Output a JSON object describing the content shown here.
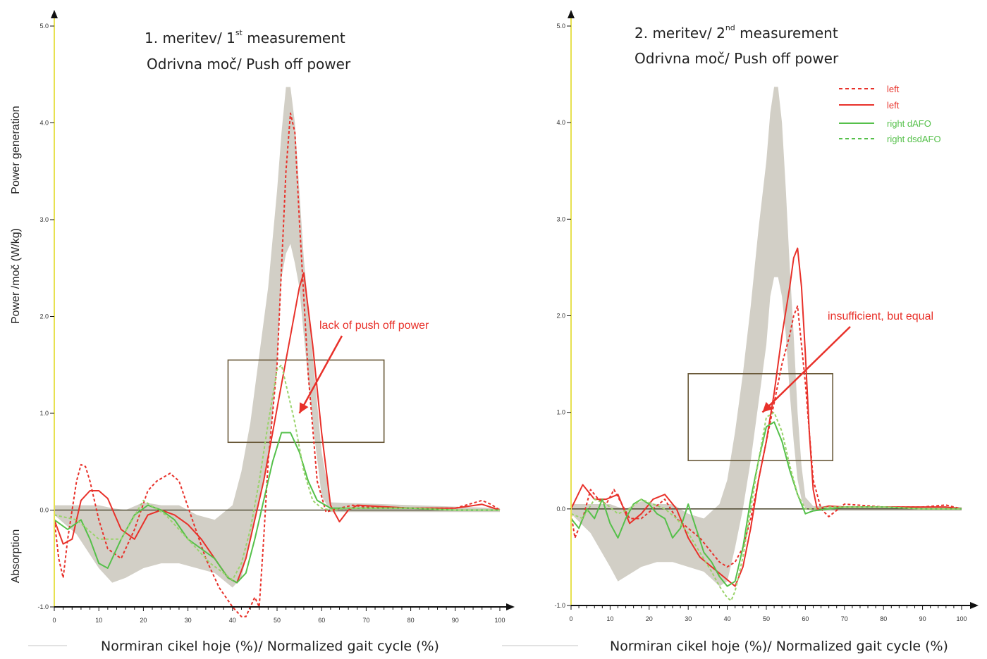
{
  "chart_data": [
    {
      "type": "line",
      "title": [
        "1. meritev/ 1",
        "st",
        " measurement"
      ],
      "subtitle": "Odrivna moč/ Push off power",
      "xlabel": "Normiran cikel hoje (%)/ Normalized gait cycle (%)",
      "ylabel": "Power /moč (W/kg)",
      "ylabel_top": "Power generation",
      "ylabel_bottom": "Absorption",
      "xlim": [
        0,
        100
      ],
      "ylim": [
        -1.0,
        5.0
      ],
      "x_ticks": [
        "0",
        "10",
        "20",
        "30",
        "40",
        "50",
        "60",
        "70",
        "80",
        "90",
        "100"
      ],
      "y_ticks": [
        "-1.0",
        "0.0",
        "1.0",
        "2.0",
        "3.0",
        "4.0",
        "5.0"
      ],
      "annotation": {
        "text": "lack of push off power",
        "box": {
          "x": [
            39,
            74
          ],
          "y": [
            0.7,
            1.55
          ]
        },
        "arrow_to": [
          55,
          1.0
        ]
      },
      "normal_band": {
        "x": [
          0,
          5,
          10,
          13,
          16,
          20,
          24,
          28,
          32,
          36,
          40,
          42,
          44,
          46,
          48,
          50,
          51,
          52,
          53,
          54,
          55,
          56,
          58,
          60,
          62,
          100
        ],
        "lower": [
          -0.05,
          -0.25,
          -0.6,
          -0.75,
          -0.7,
          -0.6,
          -0.55,
          -0.55,
          -0.6,
          -0.65,
          -0.8,
          -0.7,
          -0.3,
          0.1,
          0.5,
          1.5,
          2.4,
          2.65,
          2.75,
          2.55,
          2.3,
          1.8,
          0.9,
          0.15,
          -0.02,
          -0.02
        ],
        "upper": [
          0.05,
          0.05,
          0.05,
          0.02,
          0.0,
          0.08,
          0.05,
          0.05,
          -0.05,
          -0.1,
          0.05,
          0.4,
          0.9,
          1.6,
          2.3,
          3.3,
          3.9,
          4.37,
          4.37,
          4.0,
          3.3,
          2.6,
          1.6,
          0.6,
          0.08,
          0.02
        ]
      },
      "series": [
        {
          "color": "#e8312a",
          "dash": true,
          "x": [
            0,
            1,
            2,
            3,
            5,
            6,
            7,
            8,
            10,
            12,
            15,
            18,
            21,
            23,
            26,
            28,
            31,
            34,
            37,
            40,
            42,
            43,
            45,
            46,
            47,
            48,
            50,
            51,
            52,
            53,
            54,
            55,
            57,
            59,
            61,
            64,
            67,
            70,
            80,
            90,
            96,
            98,
            100
          ],
          "y": [
            -0.1,
            -0.5,
            -0.7,
            -0.3,
            0.3,
            0.47,
            0.45,
            0.3,
            -0.1,
            -0.4,
            -0.5,
            -0.2,
            0.2,
            0.3,
            0.38,
            0.3,
            -0.1,
            -0.5,
            -0.8,
            -1.0,
            -1.1,
            -1.1,
            -0.9,
            -1.0,
            -0.3,
            0.5,
            1.5,
            2.5,
            3.5,
            4.1,
            3.9,
            3.0,
            1.4,
            0.3,
            -0.02,
            0.02,
            0.05,
            0.03,
            0.02,
            0.02,
            0.1,
            0.06,
            0.0
          ]
        },
        {
          "color": "#e8312a",
          "dash": false,
          "x": [
            0,
            2,
            4,
            6,
            8,
            10,
            12,
            15,
            18,
            21,
            24,
            27,
            30,
            33,
            36,
            39,
            41,
            43,
            45,
            47,
            49,
            51,
            53,
            55,
            56,
            58,
            60,
            62,
            64,
            66,
            68,
            72,
            80,
            90,
            96,
            100
          ],
          "y": [
            -0.1,
            -0.35,
            -0.3,
            0.1,
            0.2,
            0.2,
            0.12,
            -0.2,
            -0.3,
            -0.05,
            0.0,
            -0.05,
            -0.15,
            -0.3,
            -0.5,
            -0.7,
            -0.75,
            -0.5,
            -0.1,
            0.3,
            0.8,
            1.3,
            1.8,
            2.3,
            2.45,
            1.7,
            0.8,
            0.05,
            -0.12,
            0.0,
            0.05,
            0.04,
            0.02,
            0.02,
            0.06,
            0.0
          ]
        },
        {
          "color": "#55c04a",
          "dash": false,
          "x": [
            0,
            3,
            6,
            8,
            10,
            12,
            15,
            18,
            21,
            24,
            27,
            30,
            33,
            36,
            39,
            41,
            43,
            45,
            47,
            49,
            51,
            53,
            55,
            57,
            59,
            62,
            66,
            70,
            80,
            90,
            100
          ],
          "y": [
            -0.1,
            -0.2,
            -0.1,
            -0.3,
            -0.55,
            -0.6,
            -0.3,
            -0.05,
            0.05,
            0.0,
            -0.1,
            -0.3,
            -0.4,
            -0.5,
            -0.7,
            -0.75,
            -0.65,
            -0.3,
            0.1,
            0.5,
            0.8,
            0.8,
            0.6,
            0.3,
            0.1,
            0.02,
            0.02,
            0.02,
            0.02,
            0.0,
            0.0
          ]
        },
        {
          "color": "#9ad36b",
          "dash": true,
          "x": [
            0,
            5,
            10,
            15,
            20,
            25,
            30,
            35,
            38,
            40,
            42,
            44,
            46,
            48,
            50,
            51,
            52,
            54,
            56,
            58,
            60,
            62,
            66,
            70,
            80,
            90,
            100
          ],
          "y": [
            -0.05,
            -0.1,
            -0.3,
            -0.3,
            0.1,
            -0.05,
            -0.3,
            -0.55,
            -0.65,
            -0.72,
            -0.55,
            -0.2,
            0.3,
            0.9,
            1.45,
            1.5,
            1.3,
            0.9,
            0.4,
            0.1,
            0.02,
            0.0,
            0.02,
            0.02,
            0.02,
            0.0,
            0.0
          ]
        }
      ]
    },
    {
      "type": "line",
      "title": [
        "2. meritev/ 2",
        "nd",
        " measurement"
      ],
      "subtitle": "Odrivna moč/ Push off power",
      "xlabel": "Normiran cikel hoje (%)/ Normalized gait cycle (%)",
      "xlim": [
        0,
        100
      ],
      "ylim": [
        -1.0,
        5.0
      ],
      "x_ticks": [
        "0",
        "10",
        "20",
        "30",
        "40",
        "50",
        "60",
        "70",
        "80",
        "90",
        "100"
      ],
      "y_ticks": [
        "-1.0",
        "0.0",
        "1.0",
        "2.0",
        "3.0",
        "4.0",
        "5.0"
      ],
      "legend": [
        {
          "label": "left",
          "color": "#e8312a",
          "dash": true
        },
        {
          "label": "left",
          "color": "#e8312a",
          "dash": false
        },
        {
          "label": "right dAFO",
          "color": "#55c04a",
          "dash": false
        },
        {
          "label": "right dsdAFO",
          "color": "#55c04a",
          "dash": true
        }
      ],
      "legend_position": "top-right",
      "annotation": {
        "text": "insufficient, but equal",
        "box": {
          "x": [
            30,
            67
          ],
          "y": [
            0.5,
            1.4
          ]
        },
        "arrow_to": [
          49,
          1.0
        ]
      },
      "normal_band": {
        "x": [
          0,
          5,
          10,
          12,
          14,
          18,
          22,
          26,
          30,
          34,
          38,
          40,
          42,
          44,
          46,
          48,
          50,
          51,
          52,
          53,
          54,
          55,
          56,
          57,
          58,
          59,
          60,
          62,
          100
        ],
        "lower": [
          -0.05,
          -0.25,
          -0.6,
          -0.75,
          -0.7,
          -0.6,
          -0.55,
          -0.55,
          -0.6,
          -0.65,
          -0.8,
          -0.75,
          -0.4,
          0.0,
          0.5,
          1.1,
          1.7,
          2.2,
          2.4,
          2.4,
          2.2,
          1.8,
          1.2,
          0.7,
          0.3,
          0.1,
          0.0,
          -0.02,
          -0.02
        ],
        "upper": [
          0.05,
          0.05,
          0.05,
          0.02,
          0.0,
          0.08,
          0.05,
          0.05,
          -0.05,
          -0.1,
          0.05,
          0.3,
          0.8,
          1.4,
          2.1,
          2.9,
          3.6,
          4.1,
          4.37,
          4.37,
          4.0,
          3.3,
          2.5,
          1.8,
          1.0,
          0.45,
          0.12,
          0.03,
          0.02
        ]
      },
      "series": [
        {
          "color": "#e8312a",
          "dash": true,
          "x": [
            0,
            1,
            3,
            5,
            7,
            9,
            11,
            13,
            15,
            18,
            21,
            24,
            27,
            30,
            33,
            36,
            38,
            40,
            42,
            44,
            46,
            48,
            50,
            52,
            54,
            56,
            57,
            58,
            60,
            62,
            64,
            66,
            70,
            80,
            90,
            96,
            100
          ],
          "y": [
            -0.05,
            -0.3,
            -0.1,
            0.2,
            0.1,
            0.05,
            0.2,
            0.05,
            -0.1,
            -0.1,
            0.0,
            0.1,
            -0.1,
            -0.2,
            -0.3,
            -0.45,
            -0.55,
            -0.6,
            -0.55,
            -0.4,
            -0.1,
            0.3,
            0.7,
            1.1,
            1.5,
            1.8,
            2.0,
            2.1,
            1.3,
            0.3,
            0.0,
            -0.08,
            0.05,
            0.02,
            0.02,
            0.04,
            0.0
          ]
        },
        {
          "color": "#e8312a",
          "dash": false,
          "x": [
            0,
            3,
            6,
            9,
            12,
            15,
            18,
            21,
            24,
            27,
            30,
            33,
            36,
            39,
            42,
            44,
            46,
            48,
            50,
            52,
            54,
            56,
            57,
            58,
            59,
            60,
            61,
            62,
            63,
            66,
            70,
            80,
            90,
            96,
            100
          ],
          "y": [
            0.0,
            0.25,
            0.1,
            0.1,
            0.15,
            -0.15,
            -0.05,
            0.1,
            0.15,
            0.0,
            -0.3,
            -0.5,
            -0.6,
            -0.7,
            -0.8,
            -0.6,
            -0.2,
            0.3,
            0.7,
            1.2,
            1.8,
            2.3,
            2.6,
            2.7,
            2.3,
            1.6,
            0.8,
            0.2,
            0.0,
            0.03,
            0.02,
            0.02,
            0.02,
            0.02,
            0.0
          ]
        },
        {
          "color": "#55c04a",
          "dash": false,
          "x": [
            0,
            2,
            4,
            6,
            8,
            10,
            12,
            14,
            16,
            18,
            20,
            22,
            24,
            26,
            28,
            30,
            32,
            34,
            36,
            38,
            40,
            42,
            44,
            46,
            48,
            50,
            52,
            54,
            56,
            58,
            60,
            62,
            66,
            70,
            80,
            90,
            100
          ],
          "y": [
            -0.1,
            -0.2,
            0.0,
            -0.1,
            0.1,
            -0.15,
            -0.3,
            -0.1,
            0.05,
            0.1,
            0.05,
            -0.05,
            -0.1,
            -0.3,
            -0.2,
            0.05,
            -0.2,
            -0.45,
            -0.55,
            -0.7,
            -0.8,
            -0.75,
            -0.4,
            0.1,
            0.5,
            0.85,
            0.9,
            0.7,
            0.4,
            0.15,
            -0.05,
            -0.02,
            0.0,
            0.02,
            0.02,
            0.0,
            0.0
          ]
        },
        {
          "color": "#9ad36b",
          "dash": true,
          "x": [
            0,
            3,
            6,
            9,
            12,
            15,
            18,
            21,
            24,
            27,
            30,
            33,
            36,
            38,
            40,
            41,
            42,
            44,
            46,
            48,
            50,
            52,
            54,
            56,
            58,
            60,
            62,
            66,
            70,
            80,
            90,
            100
          ],
          "y": [
            -0.05,
            -0.1,
            0.1,
            0.05,
            -0.05,
            0.0,
            0.1,
            0.05,
            0.0,
            -0.1,
            -0.25,
            -0.45,
            -0.65,
            -0.8,
            -0.92,
            -0.95,
            -0.85,
            -0.5,
            0.0,
            0.5,
            0.95,
            1.0,
            0.8,
            0.45,
            0.15,
            0.0,
            0.0,
            0.02,
            0.02,
            0.02,
            0.0,
            0.0
          ]
        }
      ]
    }
  ]
}
